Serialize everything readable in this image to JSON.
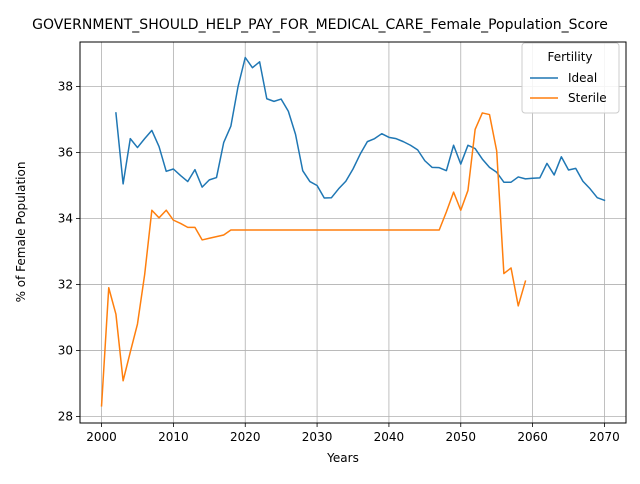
{
  "chart_data": {
    "type": "line",
    "title": "GOVERNMENT_SHOULD_HELP_PAY_FOR_MEDICAL_CARE_Female_Population_Score",
    "xlabel": "Years",
    "ylabel": "% of Female Population",
    "xlim": [
      1997,
      2073
    ],
    "ylim": [
      27.8,
      39.35
    ],
    "x_ticks": [
      2000,
      2010,
      2020,
      2030,
      2040,
      2050,
      2060,
      2070
    ],
    "y_ticks": [
      28,
      30,
      32,
      34,
      36,
      38
    ],
    "grid": true,
    "legend": {
      "title": "Fertility",
      "placement": "top-right"
    },
    "colors": {
      "Ideal": "#1f77b4",
      "Sterile": "#ff7f0e"
    },
    "series": [
      {
        "name": "Ideal",
        "x": [
          2002,
          2003,
          2004,
          2005,
          2006,
          2007,
          2008,
          2009,
          2010,
          2011,
          2012,
          2013,
          2014,
          2015,
          2016,
          2017,
          2018,
          2019,
          2020,
          2021,
          2022,
          2023,
          2024,
          2025,
          2026,
          2027,
          2028,
          2029,
          2030,
          2031,
          2032,
          2033,
          2034,
          2035,
          2036,
          2037,
          2038,
          2039,
          2040,
          2041,
          2042,
          2043,
          2044,
          2045,
          2046,
          2047,
          2048,
          2049,
          2050,
          2051,
          2052,
          2053,
          2054,
          2055,
          2056,
          2057,
          2058,
          2059,
          2060,
          2061,
          2062,
          2063,
          2064,
          2065,
          2066,
          2067,
          2068,
          2069,
          2070
        ],
        "y": [
          37.2,
          35.05,
          36.42,
          36.15,
          36.42,
          36.67,
          36.18,
          35.43,
          35.5,
          35.3,
          35.12,
          35.48,
          34.95,
          35.17,
          35.24,
          36.3,
          36.8,
          38.0,
          38.88,
          38.57,
          38.75,
          37.63,
          37.55,
          37.62,
          37.25,
          36.55,
          35.45,
          35.12,
          35.0,
          34.62,
          34.63,
          34.9,
          35.13,
          35.5,
          35.95,
          36.33,
          36.42,
          36.57,
          36.46,
          36.42,
          36.33,
          36.22,
          36.08,
          35.75,
          35.55,
          35.54,
          35.45,
          36.22,
          35.65,
          36.22,
          36.12,
          35.8,
          35.55,
          35.4,
          35.1,
          35.1,
          35.26,
          35.2,
          35.22,
          35.23,
          35.67,
          35.32,
          35.87,
          35.47,
          35.52,
          35.13,
          34.9,
          34.63,
          34.55
        ]
      },
      {
        "name": "Sterile",
        "x": [
          2000,
          2001,
          2002,
          2003,
          2004,
          2005,
          2006,
          2007,
          2008,
          2009,
          2010,
          2011,
          2012,
          2013,
          2014,
          2015,
          2016,
          2017,
          2018,
          2019,
          2020,
          2021,
          2022,
          2023,
          2024,
          2025,
          2026,
          2027,
          2028,
          2029,
          2030,
          2031,
          2032,
          2033,
          2034,
          2035,
          2036,
          2037,
          2038,
          2039,
          2040,
          2041,
          2042,
          2043,
          2044,
          2045,
          2046,
          2047,
          2048,
          2049,
          2050,
          2051,
          2052,
          2053,
          2054,
          2055,
          2056,
          2057,
          2058,
          2059
        ],
        "y": [
          28.32,
          31.9,
          31.1,
          29.08,
          29.95,
          30.8,
          32.3,
          34.25,
          34.02,
          34.25,
          33.95,
          33.85,
          33.73,
          33.73,
          33.35,
          33.4,
          33.45,
          33.5,
          33.65,
          33.65,
          33.65,
          33.65,
          33.65,
          33.65,
          33.65,
          33.65,
          33.65,
          33.65,
          33.65,
          33.65,
          33.65,
          33.65,
          33.65,
          33.65,
          33.65,
          33.65,
          33.65,
          33.65,
          33.65,
          33.65,
          33.65,
          33.65,
          33.65,
          33.65,
          33.65,
          33.65,
          33.65,
          33.65,
          34.2,
          34.8,
          34.25,
          34.85,
          36.7,
          37.2,
          37.15,
          36.05,
          32.33,
          32.5,
          31.35,
          32.1
        ]
      }
    ]
  }
}
